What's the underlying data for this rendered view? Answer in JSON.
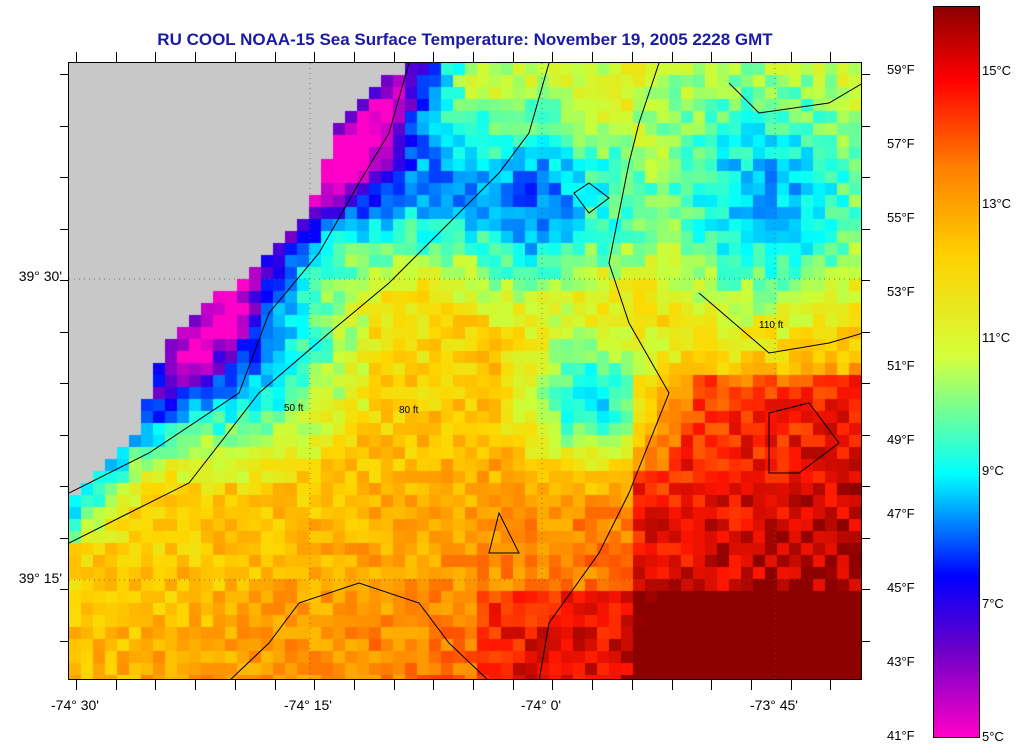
{
  "title": "RU COOL  NOAA-15  Sea Surface Temperature:  November 19, 2005 2228 GMT",
  "map": {
    "longitude_labels": [
      "-74° 30'",
      "-74° 15'",
      "-74° 0'",
      "-73° 45'"
    ],
    "latitude_labels": [
      "39° 30'",
      "39° 15'"
    ],
    "land_color": "#c8c8c8",
    "contour_labels": [
      "50 ft",
      "80 ft",
      "110 ft"
    ]
  },
  "colorbar": {
    "fahrenheit_labels": [
      "59°F",
      "57°F",
      "55°F",
      "53°F",
      "51°F",
      "49°F",
      "47°F",
      "45°F",
      "43°F",
      "41°F"
    ],
    "celsius_labels": [
      "15°C",
      "13°C",
      "11°C",
      "9°C",
      "7°C",
      "5°C"
    ],
    "colors": [
      "#ff00c8",
      "#6a00c8",
      "#0000ff",
      "#00ffff",
      "#d4ff3c",
      "#ffd000",
      "#ff8000",
      "#ff0000",
      "#8b0000"
    ]
  }
}
